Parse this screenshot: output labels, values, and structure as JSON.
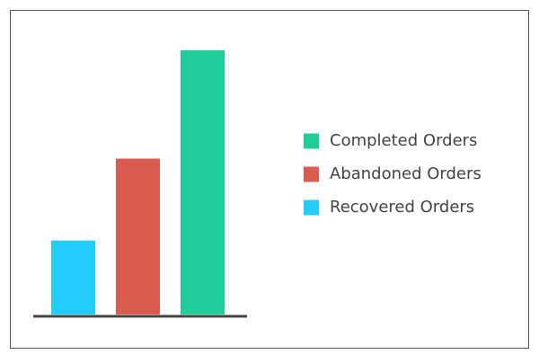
{
  "chart_data": {
    "type": "bar",
    "series": [
      {
        "name": "Completed Orders",
        "color": "#20cc9a",
        "values": [
          100
        ]
      },
      {
        "name": "Abandoned Orders",
        "color": "#da5c50",
        "values": [
          59
        ]
      },
      {
        "name": "Recovered Orders",
        "color": "#22ccfc",
        "values": [
          28
        ]
      }
    ]
  }
}
